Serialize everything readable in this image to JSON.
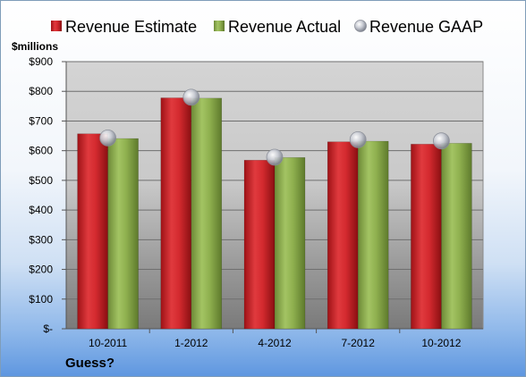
{
  "chart_data": {
    "type": "bar",
    "unit_label": "$millions",
    "caption": "Guess?",
    "categories": [
      "10-2011",
      "1-2012",
      "4-2012",
      "7-2012",
      "10-2012"
    ],
    "series": [
      {
        "name": "Revenue Estimate",
        "kind": "bar",
        "color": "#d42a2f",
        "values": [
          657,
          778,
          568,
          630,
          622
        ]
      },
      {
        "name": "Revenue Actual",
        "kind": "bar",
        "color": "#8fb04f",
        "values": [
          641,
          777,
          577,
          632,
          625
        ]
      },
      {
        "name": "Revenue GAAP",
        "kind": "marker",
        "color": "#b8bcc6",
        "values": [
          643,
          780,
          578,
          637,
          633
        ]
      }
    ],
    "y_ticks": [
      "$-",
      "$100",
      "$200",
      "$300",
      "$400",
      "$500",
      "$600",
      "$700",
      "$800",
      "$900"
    ],
    "ylim": [
      0,
      900
    ],
    "grid": true,
    "legend_position": "top"
  }
}
